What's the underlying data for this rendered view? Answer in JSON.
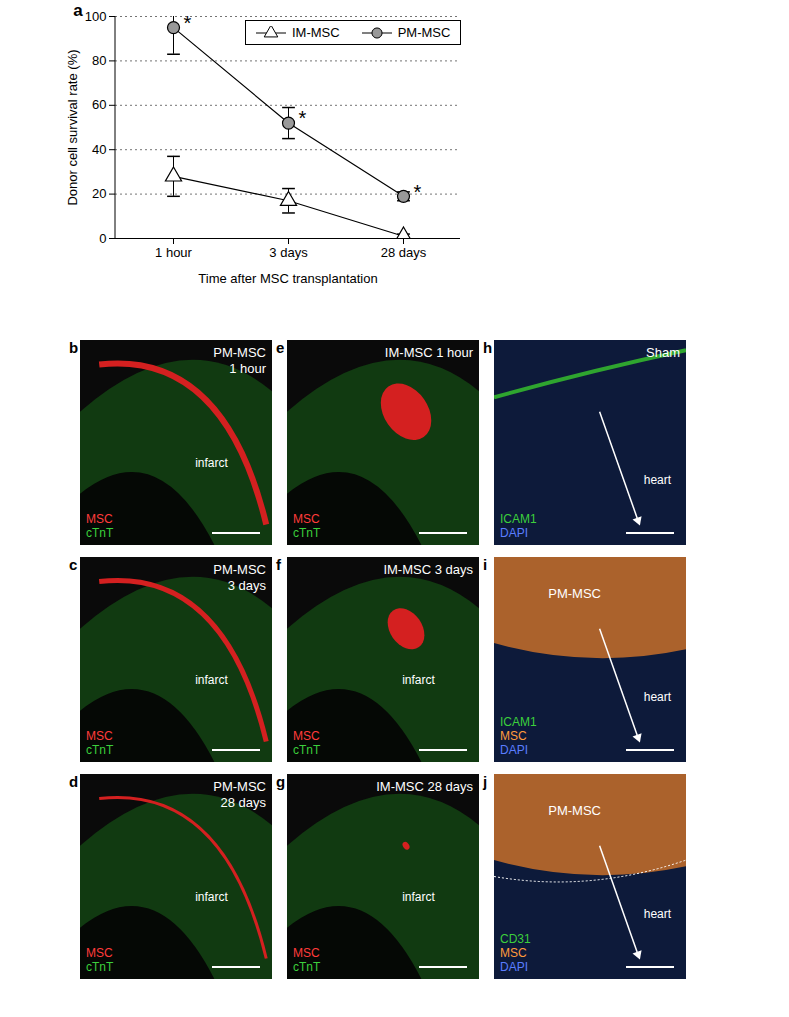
{
  "chart_data": {
    "type": "line",
    "panel": "a",
    "x_label": "Time after MSC transplantation",
    "y_label": "Donor cell survival rate (%)",
    "categories": [
      "1 hour",
      "3 days",
      "28 days"
    ],
    "series": [
      {
        "name": "IM-MSC",
        "color": "#ffffff",
        "marker": "triangle",
        "values": [
          28,
          17,
          1
        ],
        "errors": [
          9,
          5.5,
          1
        ]
      },
      {
        "name": "PM-MSC",
        "color": "#999999",
        "marker": "circle",
        "values": [
          95,
          52,
          19
        ],
        "errors": [
          12,
          7,
          2
        ]
      }
    ],
    "annotations": [
      {
        "series": "PM-MSC",
        "index": 0,
        "text": "*"
      },
      {
        "series": "PM-MSC",
        "index": 1,
        "text": "*"
      },
      {
        "series": "PM-MSC",
        "index": 2,
        "text": "*"
      }
    ],
    "ylim": [
      0,
      100
    ],
    "yticks": [
      0,
      20,
      40,
      60,
      80,
      100
    ],
    "grid": true,
    "legend": "top"
  },
  "panels": [
    {
      "letter": "b",
      "title": [
        "PM-MSC",
        "1 hour"
      ],
      "region": "infarct",
      "stains": [
        {
          "text": "MSC",
          "color": "#ff3b3b"
        },
        {
          "text": "cTnT",
          "color": "#3ccf3c"
        }
      ]
    },
    {
      "letter": "c",
      "title": [
        "PM-MSC",
        "3 days"
      ],
      "region": "infarct",
      "stains": [
        {
          "text": "MSC",
          "color": "#ff3b3b"
        },
        {
          "text": "cTnT",
          "color": "#3ccf3c"
        }
      ]
    },
    {
      "letter": "d",
      "title": [
        "PM-MSC",
        "28 days"
      ],
      "region": "infarct",
      "stains": [
        {
          "text": "MSC",
          "color": "#ff3b3b"
        },
        {
          "text": "cTnT",
          "color": "#3ccf3c"
        }
      ]
    },
    {
      "letter": "e",
      "title": [
        "IM-MSC 1 hour"
      ],
      "stains": [
        {
          "text": "MSC",
          "color": "#ff3b3b"
        },
        {
          "text": "cTnT",
          "color": "#3ccf3c"
        }
      ]
    },
    {
      "letter": "f",
      "title": [
        "IM-MSC 3 days"
      ],
      "region": "infarct",
      "stains": [
        {
          "text": "MSC",
          "color": "#ff3b3b"
        },
        {
          "text": "cTnT",
          "color": "#3ccf3c"
        }
      ]
    },
    {
      "letter": "g",
      "title": [
        "IM-MSC 28 days"
      ],
      "region": "infarct",
      "stains": [
        {
          "text": "MSC",
          "color": "#ff3b3b"
        },
        {
          "text": "cTnT",
          "color": "#3ccf3c"
        }
      ]
    },
    {
      "letter": "h",
      "title": [
        "Sham"
      ],
      "region": "heart",
      "stains": [
        {
          "text": "ICAM1",
          "color": "#3ccf3c"
        },
        {
          "text": "DAPI",
          "color": "#5a7dff"
        }
      ]
    },
    {
      "letter": "i",
      "label": "PM-MSC",
      "region": "heart",
      "stains": [
        {
          "text": "ICAM1",
          "color": "#3ccf3c"
        },
        {
          "text": "MSC",
          "color": "#ff9a3c"
        },
        {
          "text": "DAPI",
          "color": "#5a7dff"
        }
      ]
    },
    {
      "letter": "j",
      "label": "PM-MSC",
      "region": "heart",
      "stains": [
        {
          "text": "CD31",
          "color": "#3ccf3c"
        },
        {
          "text": "MSC",
          "color": "#ff9a3c"
        },
        {
          "text": "DAPI",
          "color": "#5a7dff"
        }
      ]
    }
  ]
}
